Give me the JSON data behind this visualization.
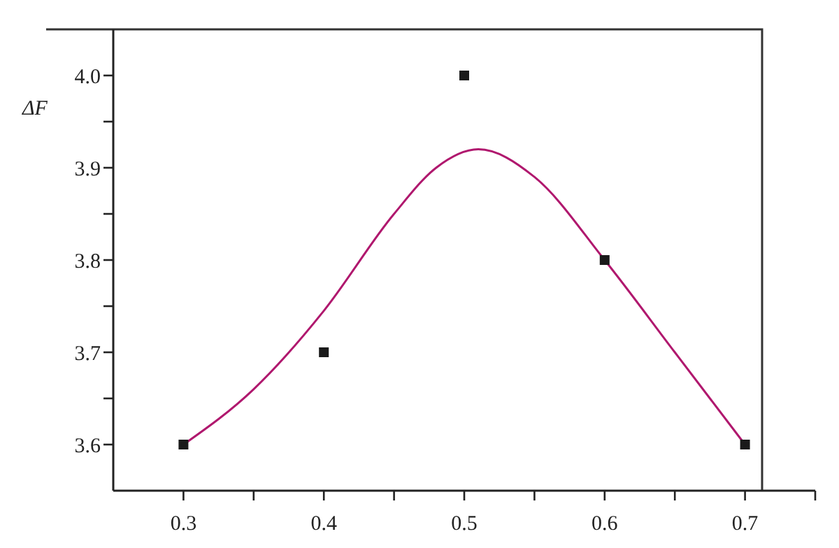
{
  "chart_data": {
    "type": "scatter",
    "ylabel": "ΔF",
    "marker": "square",
    "xlim": [
      0.25,
      0.75
    ],
    "ylim": [
      3.55,
      4.05
    ],
    "xticks": [
      0.3,
      {
        "value": 0.35,
        "label": null
      },
      0.4,
      {
        "value": 0.45,
        "label": null
      },
      0.5,
      {
        "value": 0.55,
        "label": null
      },
      0.6,
      {
        "value": 0.65,
        "label": null
      },
      0.7,
      {
        "value": 0.75,
        "label": null
      }
    ],
    "yticks": [
      3.6,
      {
        "value": 3.65,
        "label": null
      },
      3.7,
      {
        "value": 3.75,
        "label": null
      },
      3.8,
      {
        "value": 3.85,
        "label": null
      },
      3.9,
      {
        "value": 3.95,
        "label": null
      },
      {
        "value": 4.0,
        "label": "4.0"
      }
    ],
    "series": [
      {
        "type": "line",
        "marker": "none",
        "color": "#b0186e",
        "x": [
          0.3,
          0.35,
          0.4,
          0.45,
          0.48,
          0.51,
          0.55,
          0.6,
          0.65,
          0.7
        ],
        "values": [
          3.6,
          3.66,
          3.745,
          3.85,
          3.9,
          3.92,
          3.89,
          3.8,
          3.7,
          3.6
        ]
      },
      {
        "type": "scatter",
        "color": "#1a1a1a",
        "x": [
          0.3,
          0.4,
          0.5,
          0.6,
          0.7
        ],
        "values": [
          3.6,
          3.7,
          4.0,
          3.8,
          3.6
        ]
      }
    ]
  }
}
